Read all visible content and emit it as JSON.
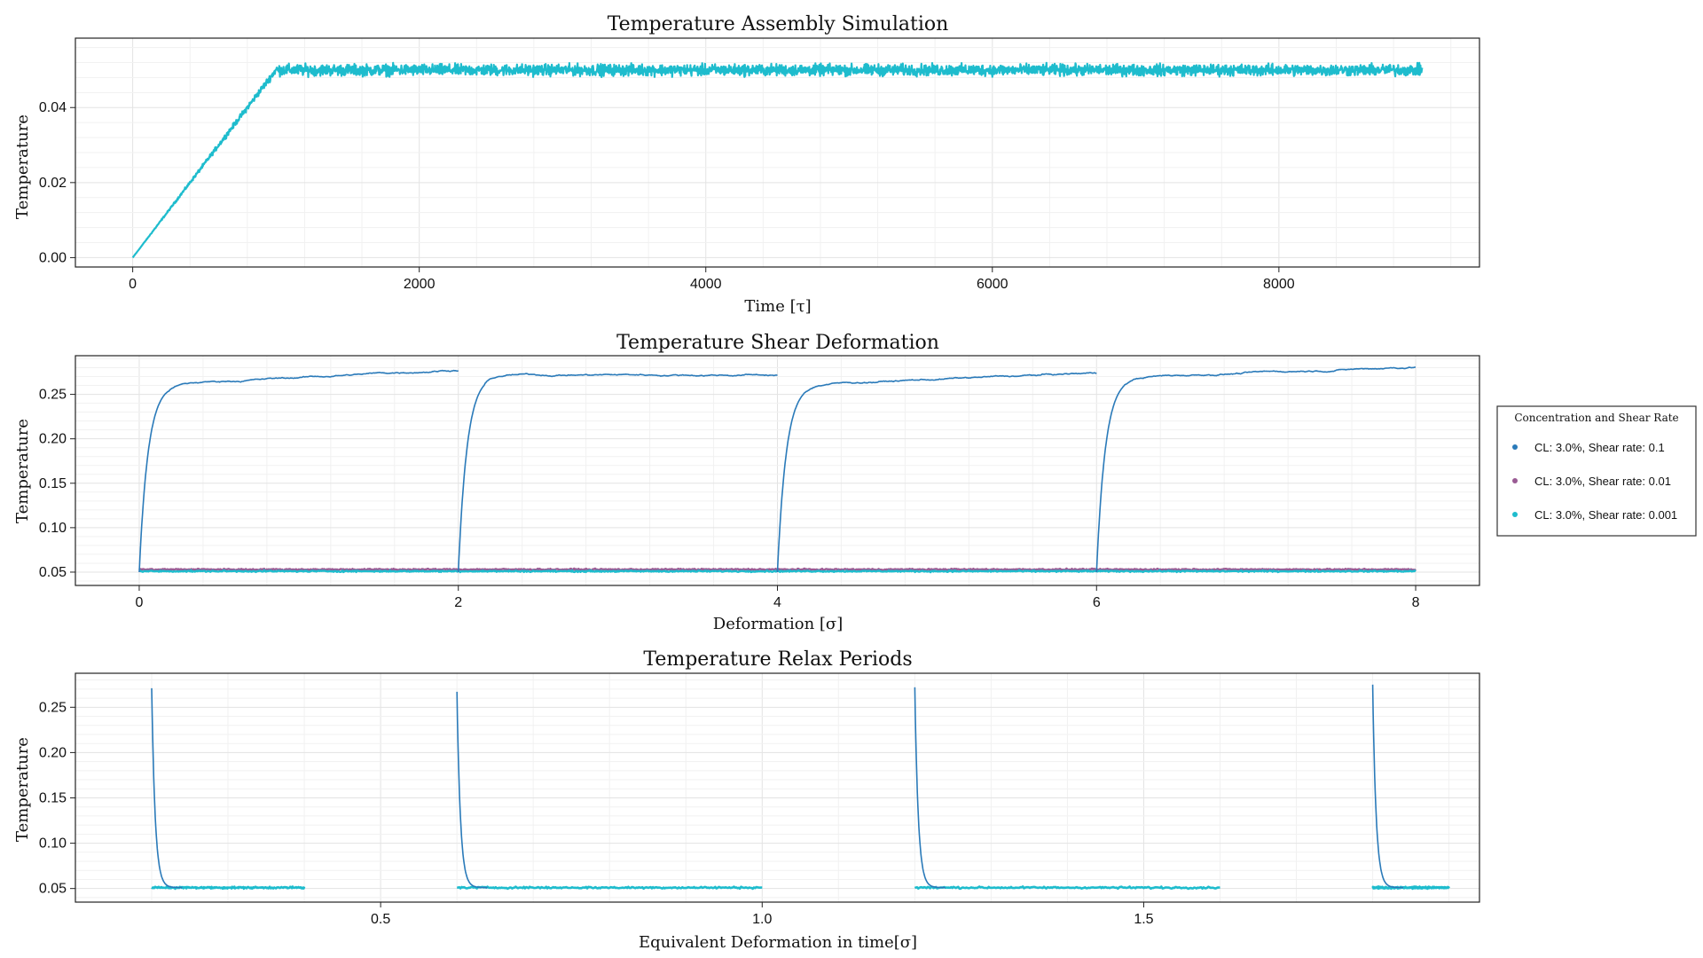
{
  "figure": {
    "legend": {
      "title": "Concentration and Shear Rate",
      "placement": "right of middle panel",
      "entries": [
        {
          "label": "CL: 3.0%, Shear rate: 0.1",
          "color": "#2a7ab9"
        },
        {
          "label": "CL: 3.0%, Shear rate: 0.01",
          "color": "#9a5b94"
        },
        {
          "label": "CL: 3.0%, Shear rate: 0.001",
          "color": "#1ebccd"
        }
      ]
    }
  },
  "chart_data": [
    {
      "type": "line",
      "title": "Temperature Assembly Simulation",
      "xlabel": "Time [τ]",
      "ylabel": "Temperature",
      "xlim": [
        -400,
        9400
      ],
      "ylim": [
        -0.0025,
        0.0585
      ],
      "xticks": [
        0,
        2000,
        4000,
        6000,
        8000
      ],
      "xtick_labels": [
        "0",
        "2000",
        "4000",
        "6000",
        "8000"
      ],
      "yticks": [
        0.0,
        0.02,
        0.04
      ],
      "ytick_labels": [
        "0.00",
        "0.02",
        "0.04"
      ],
      "grid": true,
      "series": [
        {
          "color": "#1ebccd",
          "description_shape": "linear ramp from 0 to 0.05 over t = 0–1000, then noisy plateau around 0.050 (band ±0.004) until t = 9000",
          "x": [
            0,
            1000,
            1000,
            9000
          ],
          "y": [
            0.0,
            0.05,
            0.05,
            0.05
          ],
          "noise_band": 0.004
        }
      ]
    },
    {
      "type": "line",
      "title": "Temperature Shear Deformation",
      "xlabel": "Deformation [σ]",
      "ylabel": "Temperature",
      "xlim": [
        -0.4,
        8.4
      ],
      "ylim": [
        0.035,
        0.2935
      ],
      "xticks": [
        0,
        2,
        4,
        6,
        8
      ],
      "xtick_labels": [
        "0",
        "2",
        "4",
        "6",
        "8"
      ],
      "yticks": [
        0.05,
        0.1,
        0.15,
        0.2,
        0.25
      ],
      "ytick_labels": [
        "0.05",
        "0.10",
        "0.15",
        "0.20",
        "0.25"
      ],
      "grid": true,
      "series": [
        {
          "name": "CL: 3.0%, Shear rate: 0.1",
          "color": "#2a7ab9",
          "segments": [
            {
              "start": 0,
              "end": 2,
              "rise_to": 0.26,
              "end_level": 0.278
            },
            {
              "start": 2,
              "end": 4,
              "rise_to": 0.272,
              "end_level": 0.272
            },
            {
              "start": 4,
              "end": 6,
              "rise_to": 0.26,
              "end_level": 0.274
            },
            {
              "start": 6,
              "end": 8,
              "rise_to": 0.268,
              "end_level": 0.281
            }
          ]
        },
        {
          "name": "CL: 3.0%, Shear rate: 0.01",
          "color": "#9a5b94",
          "x": [
            0,
            8
          ],
          "y": [
            0.053,
            0.053
          ]
        },
        {
          "name": "CL: 3.0%, Shear rate: 0.001",
          "color": "#1ebccd",
          "x": [
            0,
            8
          ],
          "y": [
            0.051,
            0.051
          ]
        }
      ]
    },
    {
      "type": "line",
      "title": "Temperature Relax Periods",
      "xlabel": "Equivalent Deformation in time[σ]",
      "ylabel": "Temperature",
      "xlim": [
        0.1,
        1.94
      ],
      "ylim": [
        0.035,
        0.2875
      ],
      "xticks": [
        0.5,
        1.0,
        1.5
      ],
      "xtick_labels": [
        "0.5",
        "1.0",
        "1.5"
      ],
      "yticks": [
        0.05,
        0.1,
        0.15,
        0.2,
        0.25
      ],
      "ytick_labels": [
        "0.05",
        "0.10",
        "0.15",
        "0.20",
        "0.25"
      ],
      "grid": true,
      "series": [
        {
          "color": "#2a7ab9",
          "description_shape": "exponential decay spikes at start of each relax period",
          "peaks": [
            {
              "x": 0.2,
              "y": 0.271
            },
            {
              "x": 0.6,
              "y": 0.267
            },
            {
              "x": 1.2,
              "y": 0.272
            },
            {
              "x": 1.8,
              "y": 0.275
            }
          ],
          "baseline": 0.051
        },
        {
          "color": "#1ebccd",
          "segments": [
            {
              "start": 0.2,
              "end": 0.4,
              "level": 0.051
            },
            {
              "start": 0.6,
              "end": 1.0,
              "level": 0.051
            },
            {
              "start": 1.2,
              "end": 1.6,
              "level": 0.051
            },
            {
              "start": 1.8,
              "end": 1.9,
              "level": 0.051
            }
          ]
        }
      ]
    }
  ]
}
